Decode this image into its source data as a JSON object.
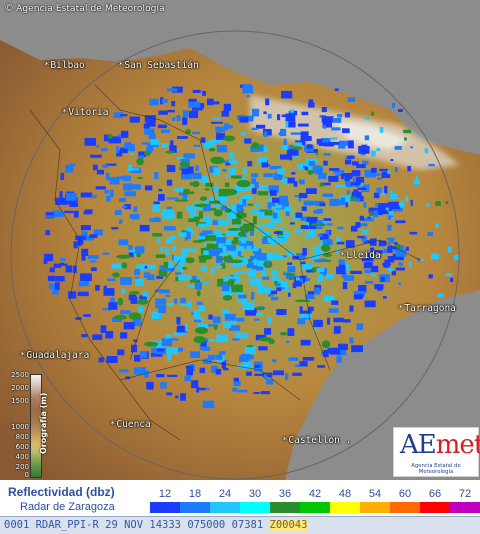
{
  "header": {
    "copyright_symbol": "©",
    "agency": "Agencia Estatal de Meteorología"
  },
  "cities": [
    {
      "id": "bilbao",
      "label": "Bilbao"
    },
    {
      "id": "san-sebastian",
      "label": "San Sebastián"
    },
    {
      "id": "vitoria",
      "label": "Vitoria"
    },
    {
      "id": "lleida",
      "label": "Lleida"
    },
    {
      "id": "tarragona",
      "label": "Tarragona"
    },
    {
      "id": "guadalajara",
      "label": "Guadalajara"
    },
    {
      "id": "cuenca",
      "label": "Cuenca"
    },
    {
      "id": "castellon",
      "label": "Castellon ."
    }
  ],
  "city_marker": "*",
  "orography": {
    "label": "Orografía (m)",
    "ticks": [
      "2500",
      "2000",
      "1500",
      "1000",
      "800",
      "600",
      "400",
      "200",
      "0"
    ]
  },
  "logo": {
    "brand_a": "AE",
    "brand_b": "met",
    "tagline": "Agencia Estatal de Meteorología"
  },
  "legend": {
    "title": "Reflectividad (dbz)",
    "subtitle": "Radar de Zaragoza",
    "unit": "dbz",
    "values": [
      "12",
      "18",
      "24",
      "30",
      "36",
      "42",
      "48",
      "54",
      "60",
      "66",
      "72"
    ],
    "colors": [
      "#1a3cff",
      "#1e7bff",
      "#20c8ff",
      "#00ffff",
      "#2a8f2a",
      "#00c800",
      "#ffff00",
      "#ffb000",
      "#ff6a00",
      "#ff0000",
      "#c000c0"
    ]
  },
  "status_bar": {
    "text": "0001 RDAR_PPI-R  29 NOV 14333 075000 07381",
    "highlight": "Z00043"
  },
  "theme": {
    "sea": "#8c8c8c",
    "outside": "#9a9a9a"
  }
}
